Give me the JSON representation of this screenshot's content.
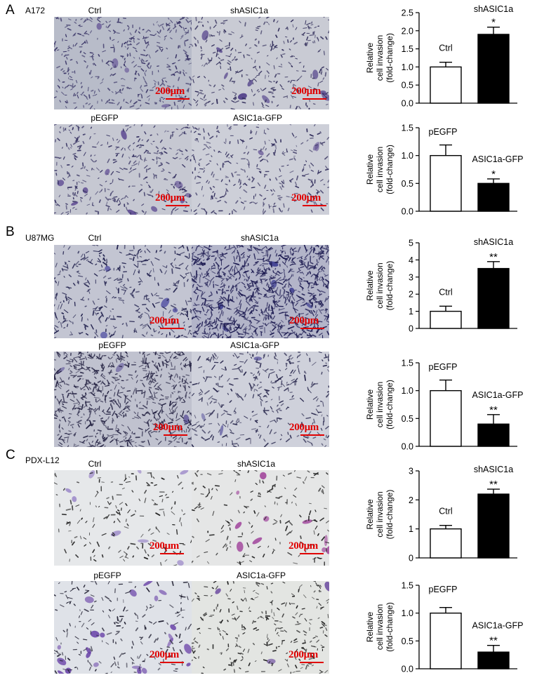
{
  "figure": {
    "panels": [
      {
        "letter": "A",
        "cell_line": "A172",
        "rows": [
          {
            "left_label": "Ctrl",
            "right_label": "shASIC1a",
            "left_style": "violet-dense",
            "right_style": "violet-clusters",
            "scale": "200μm"
          },
          {
            "left_label": "pEGFP",
            "right_label": "ASIC1a-GFP",
            "left_style": "violet-mid",
            "right_style": "violet-sparse",
            "scale": "200μm"
          }
        ]
      },
      {
        "letter": "B",
        "cell_line": "U87MG",
        "rows": [
          {
            "left_label": "Ctrl",
            "right_label": "shASIC1a",
            "left_style": "blue-mid",
            "right_style": "blue-dense",
            "scale": "200μm"
          },
          {
            "left_label": "pEGFP",
            "right_label": "ASIC1a-GFP",
            "left_style": "blue-dense2",
            "right_style": "blue-sparse",
            "scale": "200μm"
          }
        ]
      },
      {
        "letter": "C",
        "cell_line": "PDX-L12",
        "rows": [
          {
            "left_label": "Ctrl",
            "right_label": "shASIC1a",
            "left_style": "pale-sparse",
            "right_style": "pale-purple",
            "scale": "200μm"
          },
          {
            "left_label": "pEGFP",
            "right_label": "ASIC1a-GFP",
            "left_style": "pale-purple2",
            "right_style": "pale-fine",
            "scale": "200μm"
          }
        ]
      }
    ]
  },
  "chart_data": [
    {
      "type": "bar",
      "ylabel": "Relative\ncell invasion\n(fold-change)",
      "categories": [
        "Ctrl",
        "shASIC1a"
      ],
      "values": [
        1.0,
        1.9
      ],
      "errors": [
        0.13,
        0.2
      ],
      "ylim": [
        0,
        2.5
      ],
      "yticks": [
        "0.0",
        "0.5",
        "1.0",
        "1.5",
        "2.0",
        "2.5"
      ],
      "significance": [
        "",
        "*"
      ],
      "fills": [
        "#ffffff",
        "#000000"
      ]
    },
    {
      "type": "bar",
      "ylabel": "Relative\ncell invasion\n(fold-change)",
      "categories": [
        "pEGFP",
        "ASIC1a-GFP"
      ],
      "values": [
        1.0,
        0.5
      ],
      "errors": [
        0.19,
        0.08
      ],
      "ylim": [
        0,
        1.5
      ],
      "yticks": [
        "0.0",
        "0.5",
        "1.0",
        "1.5"
      ],
      "significance": [
        "",
        "*"
      ],
      "fills": [
        "#ffffff",
        "#000000"
      ]
    },
    {
      "type": "bar",
      "ylabel": "Relative\ncell invasion\n(fold-change)",
      "categories": [
        "Ctrl",
        "shASIC1a"
      ],
      "values": [
        1.0,
        3.5
      ],
      "errors": [
        0.3,
        0.4
      ],
      "ylim": [
        0,
        5
      ],
      "yticks": [
        "0",
        "1",
        "2",
        "3",
        "4",
        "5"
      ],
      "significance": [
        "",
        "**"
      ],
      "fills": [
        "#ffffff",
        "#000000"
      ]
    },
    {
      "type": "bar",
      "ylabel": "Relative\ncell invasion\n(fold-change)",
      "categories": [
        "pEGFP",
        "ASIC1a-GFP"
      ],
      "values": [
        1.0,
        0.4
      ],
      "errors": [
        0.19,
        0.17
      ],
      "ylim": [
        0,
        1.5
      ],
      "yticks": [
        "0.0",
        "0.5",
        "1.0",
        "1.5"
      ],
      "significance": [
        "",
        "**"
      ],
      "fills": [
        "#ffffff",
        "#000000"
      ]
    },
    {
      "type": "bar",
      "ylabel": "Relative\ncell invasion\n(fold-change)",
      "categories": [
        "Ctrl",
        "shASIC1a"
      ],
      "values": [
        1.0,
        2.2
      ],
      "errors": [
        0.12,
        0.17
      ],
      "ylim": [
        0,
        3
      ],
      "yticks": [
        "0",
        "1",
        "2",
        "3"
      ],
      "significance": [
        "",
        "**"
      ],
      "fills": [
        "#ffffff",
        "#000000"
      ]
    },
    {
      "type": "bar",
      "ylabel": "Relative\ncell invasion\n(fold-change)",
      "categories": [
        "pEGFP",
        "ASIC1a-GFP"
      ],
      "values": [
        1.0,
        0.3
      ],
      "errors": [
        0.1,
        0.12
      ],
      "ylim": [
        0,
        1.5
      ],
      "yticks": [
        "0.0",
        "0.5",
        "1.0",
        "1.5"
      ],
      "significance": [
        "",
        "**"
      ],
      "fills": [
        "#ffffff",
        "#000000"
      ]
    }
  ]
}
